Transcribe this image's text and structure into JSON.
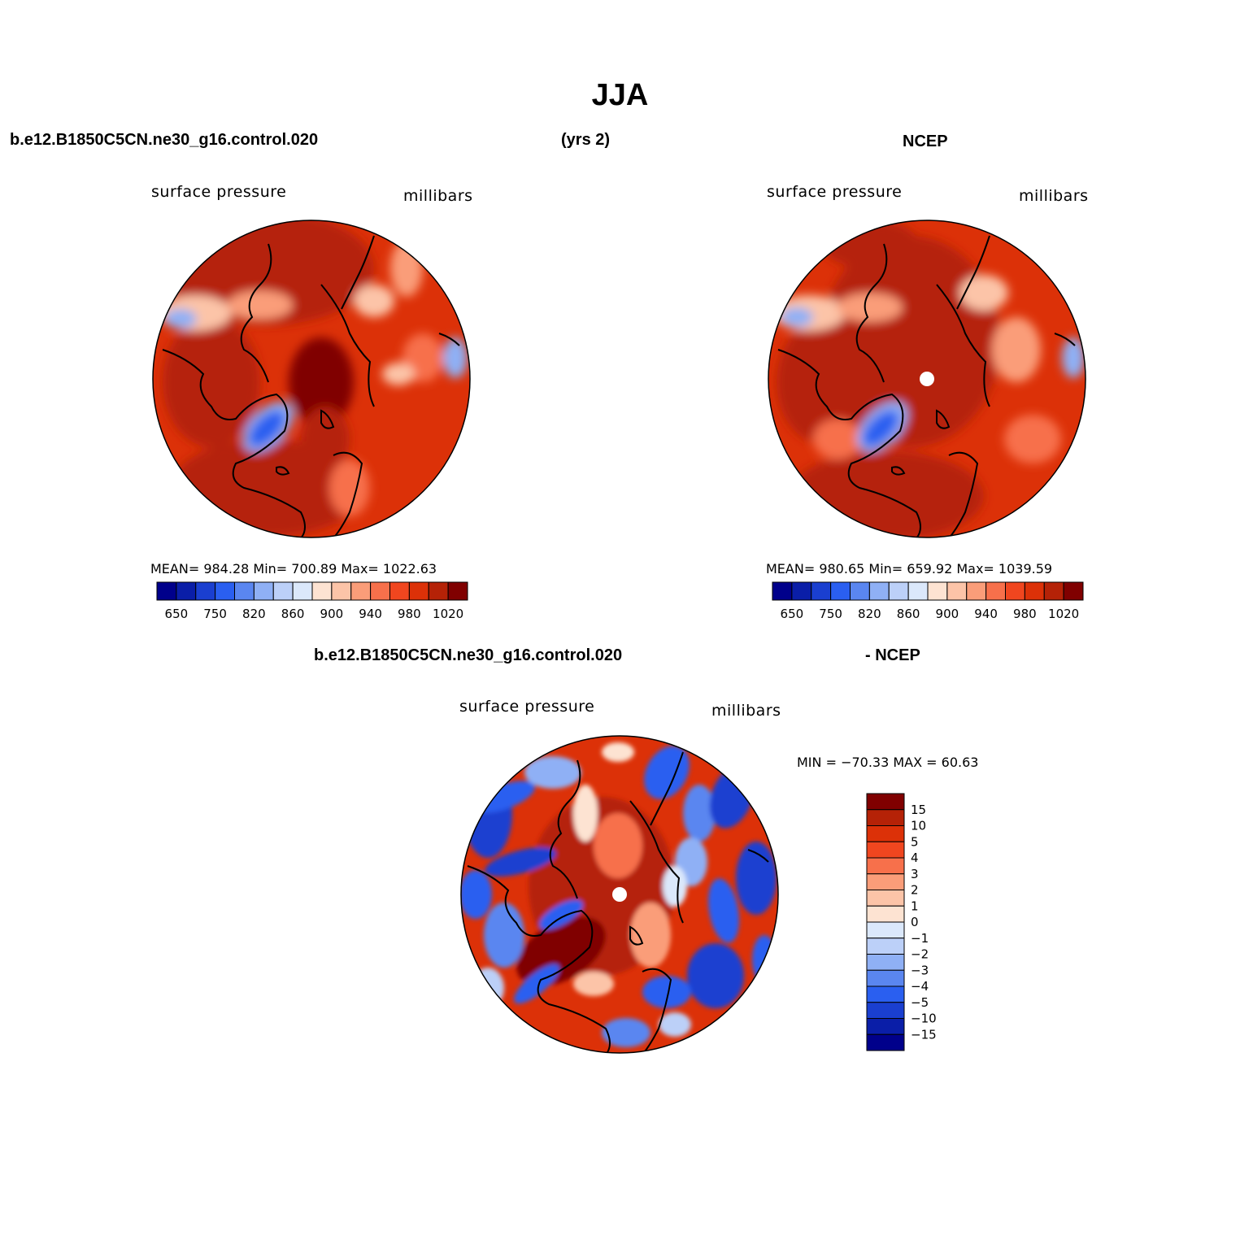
{
  "title": "JJA",
  "header": {
    "case": "b.e12.B1850C5CN.ne30_g16.control.020",
    "years": "(yrs 2)",
    "obs": "NCEP"
  },
  "diff_header": {
    "case": "b.e12.B1850C5CN.ne30_g16.control.020",
    "obs": "- NCEP"
  },
  "panels": [
    {
      "id": "model",
      "left_label": "surface pressure",
      "right_label": "millibars",
      "stats": "MEAN= 984.28   Min= 700.89   Max= 1022.63",
      "has_pole_dot": false
    },
    {
      "id": "obs",
      "left_label": "surface pressure",
      "right_label": "millibars",
      "stats": "MEAN= 980.65   Min= 659.92   Max= 1039.59",
      "has_pole_dot": true
    },
    {
      "id": "diff",
      "left_label": "surface pressure",
      "right_label": "millibars",
      "stats": "MIN = −70.33 MAX =   60.63",
      "has_pole_dot": true
    }
  ],
  "abs_colorbar": {
    "colors": [
      "#00008b",
      "#0a1ea8",
      "#1a3fd0",
      "#2a5ff0",
      "#5a86f0",
      "#8fb0f5",
      "#bcd0f8",
      "#dbe8fb",
      "#fde3d2",
      "#fcc4a8",
      "#fa9d79",
      "#f7704b",
      "#f0461f",
      "#dc3108",
      "#b52207",
      "#800000"
    ],
    "tick_labels": [
      "650",
      "750",
      "820",
      "860",
      "900",
      "940",
      "980",
      "1020"
    ]
  },
  "diff_colorbar": {
    "colors": [
      "#800000",
      "#b52207",
      "#dc3108",
      "#f0461f",
      "#f7704b",
      "#fa9d79",
      "#fcc4a8",
      "#fde3d2",
      "#dbe8fb",
      "#bcd0f8",
      "#8fb0f5",
      "#5a86f0",
      "#2a5ff0",
      "#1a3fd0",
      "#0a1ea8",
      "#00008b"
    ],
    "tick_labels": [
      "15",
      "10",
      "5",
      "4",
      "3",
      "2",
      "1",
      "0",
      "−1",
      "−2",
      "−3",
      "−4",
      "−5",
      "−10",
      "−15"
    ]
  }
}
